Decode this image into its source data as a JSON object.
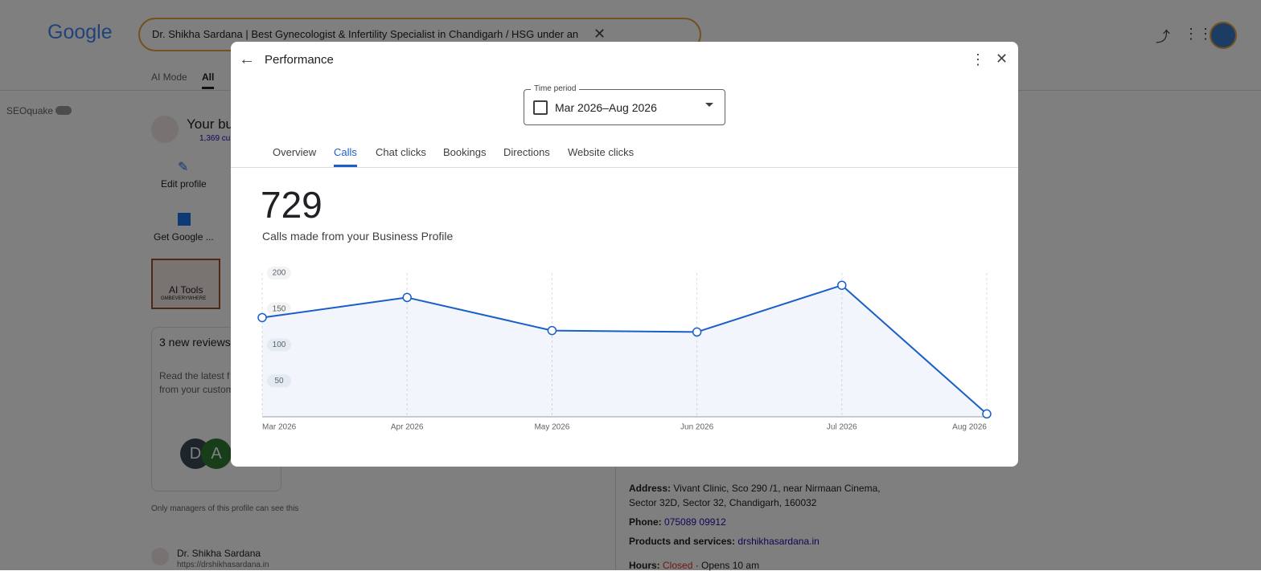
{
  "logo": "Google",
  "search": {
    "query": "Dr. Shikha Sardana | Best Gynecologist & Infertility Specialist in Chandigarh / HSG under an"
  },
  "tabs": [
    "AI Mode",
    "All"
  ],
  "seoquake": "SEOquake",
  "business": {
    "title": "Your bu",
    "stats": "1,369 cu",
    "actions": [
      "Edit profile",
      "Get Google ..."
    ],
    "ai_tools": {
      "label": "AI Tools",
      "sub": "GMBEVERYWHERE"
    },
    "reviews": {
      "title": "3 new reviews",
      "text": [
        "Read the latest f",
        "from your custom"
      ],
      "avatars": [
        "D",
        "A"
      ]
    },
    "note": "Only managers of this profile can see this"
  },
  "result": {
    "name": "Dr. Shikha Sardana",
    "url": "https://drshikhasardana.in"
  },
  "details": {
    "address_label": "Address:",
    "address": [
      "Vivant Clinic, Sco 290 /1, near Nirmaan Cinema,",
      "Sector 32D, Sector 32, Chandigarh, 160032"
    ],
    "phone_label": "Phone:",
    "phone": "075089 09912",
    "products_label": "Products and services:",
    "products": "drshikhasardana.in",
    "hours_label": "Hours:",
    "hours_status": "Closed",
    "hours_opens": "· Opens 10 am"
  },
  "modal": {
    "title": "Performance",
    "time_period": {
      "label": "Time period",
      "value": "Mar 2026–Aug 2026"
    },
    "tabs": [
      "Overview",
      "Calls",
      "Chat clicks",
      "Bookings",
      "Directions",
      "Website clicks"
    ],
    "active_tab": 1,
    "summary": {
      "value": 729,
      "label": "Calls made from your Business Profile"
    }
  },
  "chart_data": {
    "type": "line",
    "categories": [
      "Mar 2026",
      "Apr 2026",
      "May 2026",
      "Jun 2026",
      "Jul 2026",
      "Aug 2026"
    ],
    "series": [
      {
        "name": "Calls",
        "color": "#1a5fc8",
        "values": [
          138,
          166,
          120,
          118,
          183,
          4
        ]
      }
    ],
    "ylim": [
      0,
      200
    ],
    "yticks": [
      50,
      100,
      150,
      200
    ],
    "grid": false,
    "x_grid": true
  }
}
